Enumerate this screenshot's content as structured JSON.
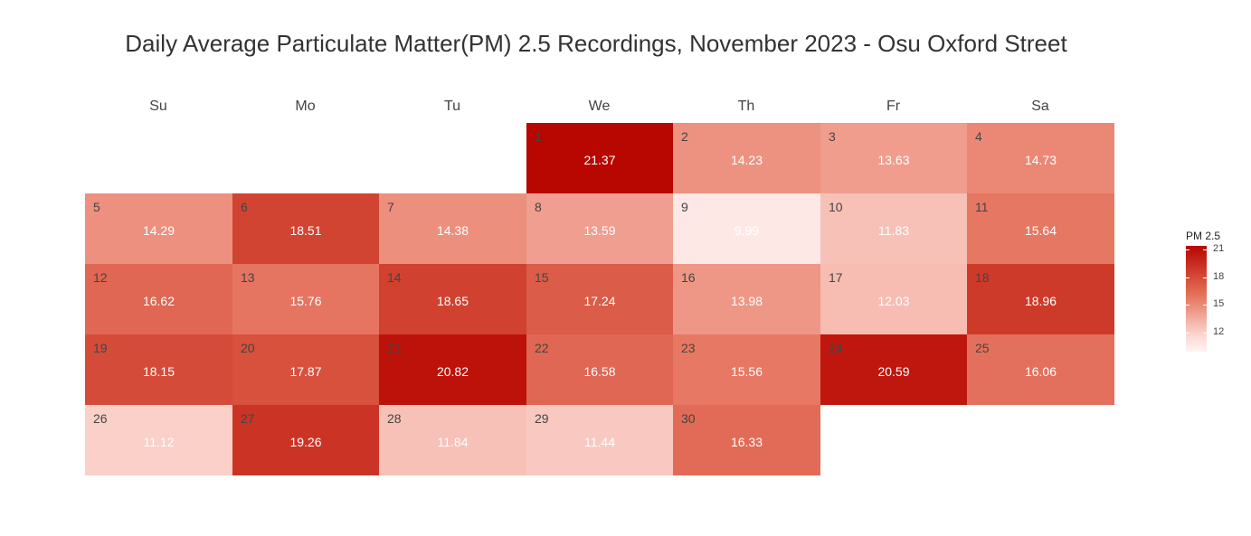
{
  "chart_data": {
    "type": "heatmap",
    "title": "Daily Average Particulate Matter(PM) 2.5 Recordings, November 2023 - Osu Oxford Street",
    "weekdays": [
      "Su",
      "Mo",
      "Tu",
      "We",
      "Th",
      "Fr",
      "Sa"
    ],
    "first_weekday_index": 3,
    "days": [
      {
        "day": 1,
        "value": 21.37
      },
      {
        "day": 2,
        "value": 14.23
      },
      {
        "day": 3,
        "value": 13.63
      },
      {
        "day": 4,
        "value": 14.73
      },
      {
        "day": 5,
        "value": 14.29
      },
      {
        "day": 6,
        "value": 18.51
      },
      {
        "day": 7,
        "value": 14.38
      },
      {
        "day": 8,
        "value": 13.59
      },
      {
        "day": 9,
        "value": 9.99
      },
      {
        "day": 10,
        "value": 11.83
      },
      {
        "day": 11,
        "value": 15.64
      },
      {
        "day": 12,
        "value": 16.62
      },
      {
        "day": 13,
        "value": 15.76
      },
      {
        "day": 14,
        "value": 18.65
      },
      {
        "day": 15,
        "value": 17.24
      },
      {
        "day": 16,
        "value": 13.98
      },
      {
        "day": 17,
        "value": 12.03
      },
      {
        "day": 18,
        "value": 18.96
      },
      {
        "day": 19,
        "value": 18.15
      },
      {
        "day": 20,
        "value": 17.87
      },
      {
        "day": 21,
        "value": 20.82
      },
      {
        "day": 22,
        "value": 16.58
      },
      {
        "day": 23,
        "value": 15.56
      },
      {
        "day": 24,
        "value": 20.59
      },
      {
        "day": 25,
        "value": 16.06
      },
      {
        "day": 26,
        "value": 11.12
      },
      {
        "day": 27,
        "value": 19.26
      },
      {
        "day": 28,
        "value": 11.84
      },
      {
        "day": 29,
        "value": 11.44
      },
      {
        "day": 30,
        "value": 16.33
      }
    ],
    "legend": {
      "title": "PM 2.5",
      "ticks": [
        21,
        18,
        15,
        12
      ],
      "range": [
        9.99,
        21.37
      ],
      "low_color": "#fde8e6",
      "high_color": "#b80600"
    }
  }
}
